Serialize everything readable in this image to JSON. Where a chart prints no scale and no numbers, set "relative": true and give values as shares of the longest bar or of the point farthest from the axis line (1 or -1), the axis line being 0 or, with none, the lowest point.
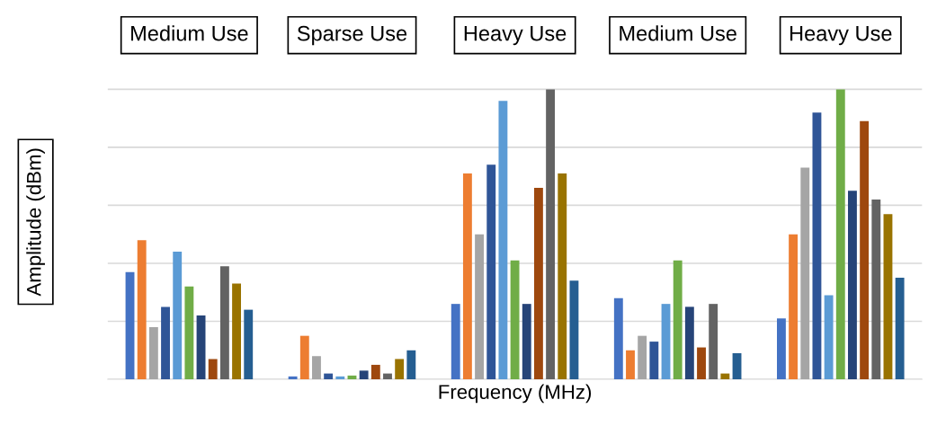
{
  "chart_data": {
    "type": "bar",
    "relative": true,
    "xlabel": "Frequency (MHz)",
    "ylabel": "Amplitude (dBm)",
    "categories": [
      "Medium Use",
      "Sparse Use",
      "Heavy Use",
      "Medium Use",
      "Heavy Use"
    ],
    "grid": "y",
    "legend": false,
    "tick_labels": false,
    "series": [
      {
        "color": "#4472c4",
        "values": [
          0.37,
          0.01,
          0.26,
          0.28,
          0.21
        ]
      },
      {
        "color": "#ed7d31",
        "values": [
          0.48,
          0.15,
          0.71,
          0.1,
          0.5
        ]
      },
      {
        "color": "#a5a5a5",
        "values": [
          0.18,
          0.08,
          0.5,
          0.15,
          0.73
        ]
      },
      {
        "color": "#2f5597",
        "values": [
          0.25,
          0.02,
          0.74,
          0.13,
          0.92
        ]
      },
      {
        "color": "#5b9bd5",
        "values": [
          0.44,
          0.01,
          0.96,
          0.26,
          0.29
        ]
      },
      {
        "color": "#70ad47",
        "values": [
          0.32,
          0.013,
          0.41,
          0.41,
          1.0
        ]
      },
      {
        "color": "#264478",
        "values": [
          0.22,
          0.03,
          0.26,
          0.25,
          0.65
        ]
      },
      {
        "color": "#9e480e",
        "values": [
          0.07,
          0.05,
          0.66,
          0.11,
          0.89
        ]
      },
      {
        "color": "#636363",
        "values": [
          0.39,
          0.02,
          1.0,
          0.26,
          0.62
        ]
      },
      {
        "color": "#997300",
        "values": [
          0.33,
          0.07,
          0.71,
          0.02,
          0.57
        ]
      },
      {
        "color": "#255e91",
        "values": [
          0.24,
          0.1,
          0.34,
          0.09,
          0.35
        ]
      }
    ]
  }
}
